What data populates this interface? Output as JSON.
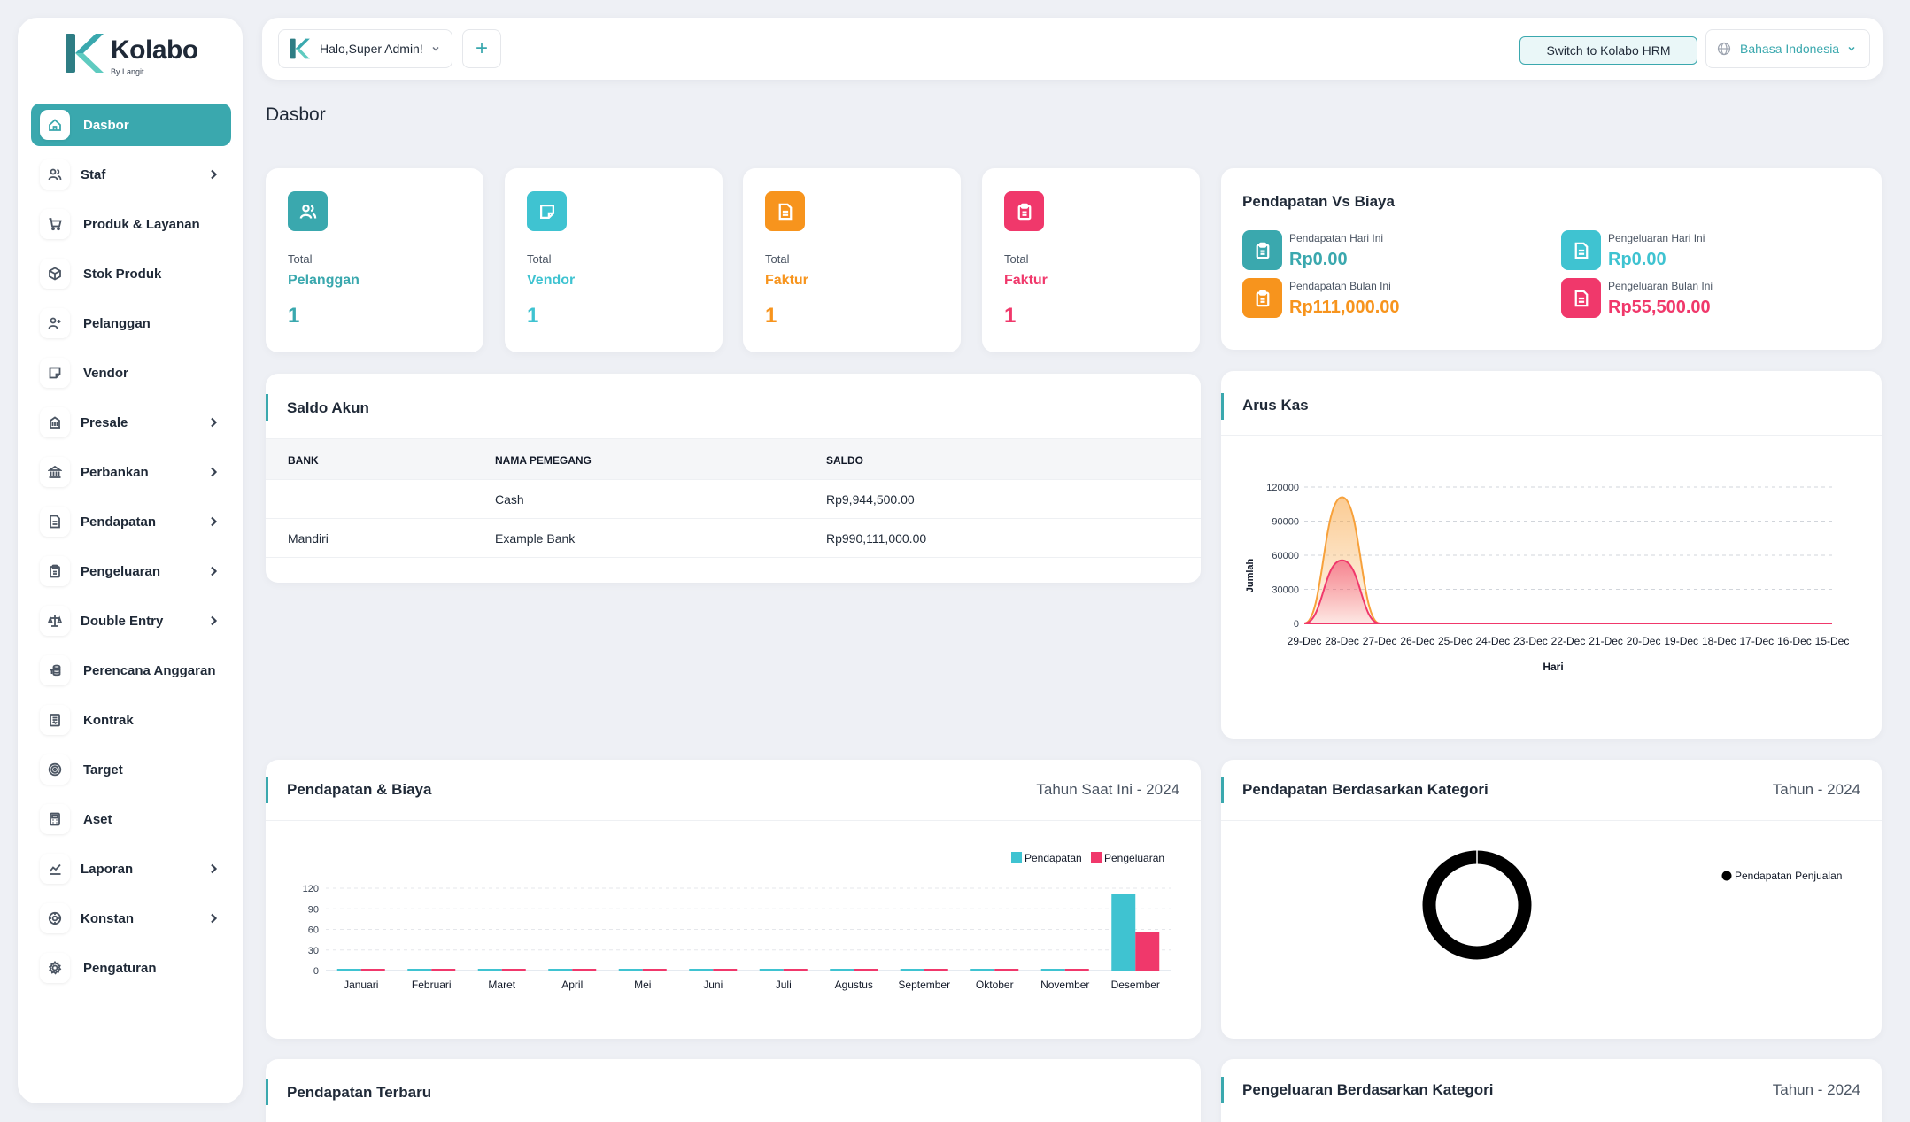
{
  "brand": {
    "name": "Kolabo",
    "sub": "By Langit"
  },
  "colors": {
    "teal": "#3aa8ae",
    "cyan": "#3fc3d1",
    "orange": "#f7941d",
    "pink": "#f0386b"
  },
  "sidebar": {
    "items": [
      {
        "label": "Dasbor",
        "icon": "home-icon",
        "active": true,
        "sub": false
      },
      {
        "label": "Staf",
        "icon": "users-icon",
        "sub": true
      },
      {
        "label": "Produk & Layanan",
        "icon": "cart-icon",
        "sub": false
      },
      {
        "label": "Stok Produk",
        "icon": "box-icon",
        "sub": false
      },
      {
        "label": "Pelanggan",
        "icon": "user-plus-icon",
        "sub": false
      },
      {
        "label": "Vendor",
        "icon": "sticky-note-icon",
        "sub": false
      },
      {
        "label": "Presale",
        "icon": "building-icon",
        "sub": true
      },
      {
        "label": "Perbankan",
        "icon": "bank-icon",
        "sub": true
      },
      {
        "label": "Pendapatan",
        "icon": "file-icon",
        "sub": true
      },
      {
        "label": "Pengeluaran",
        "icon": "clipboard-icon",
        "sub": true
      },
      {
        "label": "Double Entry",
        "icon": "scale-icon",
        "sub": true
      },
      {
        "label": "Perencana Anggaran",
        "icon": "coins-icon",
        "sub": false
      },
      {
        "label": "Kontrak",
        "icon": "contract-icon",
        "sub": false
      },
      {
        "label": "Target",
        "icon": "target-icon",
        "sub": false
      },
      {
        "label": "Aset",
        "icon": "calculator-icon",
        "sub": false
      },
      {
        "label": "Laporan",
        "icon": "chart-line-icon",
        "sub": true
      },
      {
        "label": "Konstan",
        "icon": "settings-alt-icon",
        "sub": true
      },
      {
        "label": "Pengaturan",
        "icon": "gear-icon",
        "sub": false
      }
    ]
  },
  "topbar": {
    "greeting": "Halo,Super Admin!",
    "add_label": "+",
    "switch_label": "Switch to Kolabo HRM",
    "language": "Bahasa Indonesia"
  },
  "page_title": "Dasbor",
  "stats": [
    {
      "total": "Total",
      "name": "Pelanggan",
      "value": "1",
      "color": "#3aa8ae",
      "icon": "users-icon"
    },
    {
      "total": "Total",
      "name": "Vendor",
      "value": "1",
      "color": "#3fc3d1",
      "icon": "sticky-note-icon"
    },
    {
      "total": "Total",
      "name": "Faktur",
      "value": "1",
      "color": "#f7941d",
      "icon": "invoice-icon"
    },
    {
      "total": "Total",
      "name": "Faktur",
      "value": "1",
      "color": "#f0386b",
      "icon": "clipboard-icon"
    }
  ],
  "income_vs_cost": {
    "title": "Pendapatan Vs Biaya",
    "items": [
      {
        "label": "Pendapatan Hari Ini",
        "value": "Rp0.00",
        "color": "#3aa8ae"
      },
      {
        "label": "Pengeluaran Hari Ini",
        "value": "Rp0.00",
        "color": "#3fc3d1"
      },
      {
        "label": "Pendapatan Bulan Ini",
        "value": "Rp111,000.00",
        "color": "#f7941d"
      },
      {
        "label": "Pengeluaran Bulan Ini",
        "value": "Rp55,500.00",
        "color": "#f0386b"
      }
    ]
  },
  "account_balance": {
    "title": "Saldo Akun",
    "columns": [
      "BANK",
      "NAMA PEMEGANG",
      "SALDO"
    ],
    "rows": [
      [
        "",
        "Cash",
        "Rp9,944,500.00"
      ],
      [
        "Mandiri",
        "Example Bank",
        "Rp990,111,000.00"
      ]
    ]
  },
  "cash_flow": {
    "title": "Arus Kas",
    "chart_data": {
      "type": "area",
      "x": [
        "29-Dec",
        "28-Dec",
        "27-Dec",
        "26-Dec",
        "25-Dec",
        "24-Dec",
        "23-Dec",
        "22-Dec",
        "21-Dec",
        "20-Dec",
        "19-Dec",
        "18-Dec",
        "17-Dec",
        "16-Dec",
        "15-Dec"
      ],
      "series": [
        {
          "values": [
            0,
            111000,
            0,
            0,
            0,
            0,
            0,
            0,
            0,
            0,
            0,
            0,
            0,
            0,
            0
          ],
          "color": "#f7a13b"
        },
        {
          "values": [
            0,
            55500,
            0,
            0,
            0,
            0,
            0,
            0,
            0,
            0,
            0,
            0,
            0,
            0,
            0
          ],
          "color": "#f0386b"
        }
      ],
      "yticks": [
        "0",
        "30000",
        "60000",
        "90000",
        "120000"
      ],
      "ylim": [
        0,
        120000
      ],
      "xlabel": "Hari",
      "ylabel": "Jumlah",
      "grid": true
    }
  },
  "income_cost": {
    "title": "Pendapatan & Biaya",
    "period": "Tahun Saat Ini - 2024",
    "chart_data": {
      "type": "bar",
      "categories": [
        "Januari",
        "Februari",
        "Maret",
        "April",
        "Mei",
        "Juni",
        "Juli",
        "Agustus",
        "September",
        "Oktober",
        "November",
        "Desember"
      ],
      "series": [
        {
          "name": "Pendapatan",
          "values": [
            0,
            0,
            0,
            0,
            0,
            0,
            0,
            0,
            0,
            0,
            0,
            111
          ],
          "color": "#3fc3d1"
        },
        {
          "name": "Pengeluaran",
          "values": [
            0,
            0,
            0,
            0,
            0,
            0,
            0,
            0,
            0,
            0,
            0,
            55.5
          ],
          "color": "#f0386b"
        }
      ],
      "yticks": [
        "0",
        "30",
        "60",
        "90",
        "120"
      ],
      "ylim": [
        0,
        120
      ],
      "legend": "top-right",
      "grid": true
    }
  },
  "income_by_category": {
    "title": "Pendapatan Berdasarkan Kategori",
    "period": "Tahun - 2024",
    "chart_data": {
      "type": "pie",
      "labels": [
        "Pendapatan Penjualan"
      ],
      "values": [
        100
      ],
      "colors": [
        "#000000"
      ],
      "legend": "top-right"
    }
  },
  "recent_income": {
    "title": "Pendapatan Terbaru"
  },
  "expense_by_category": {
    "title": "Pengeluaran Berdasarkan Kategori",
    "period": "Tahun - 2024"
  }
}
